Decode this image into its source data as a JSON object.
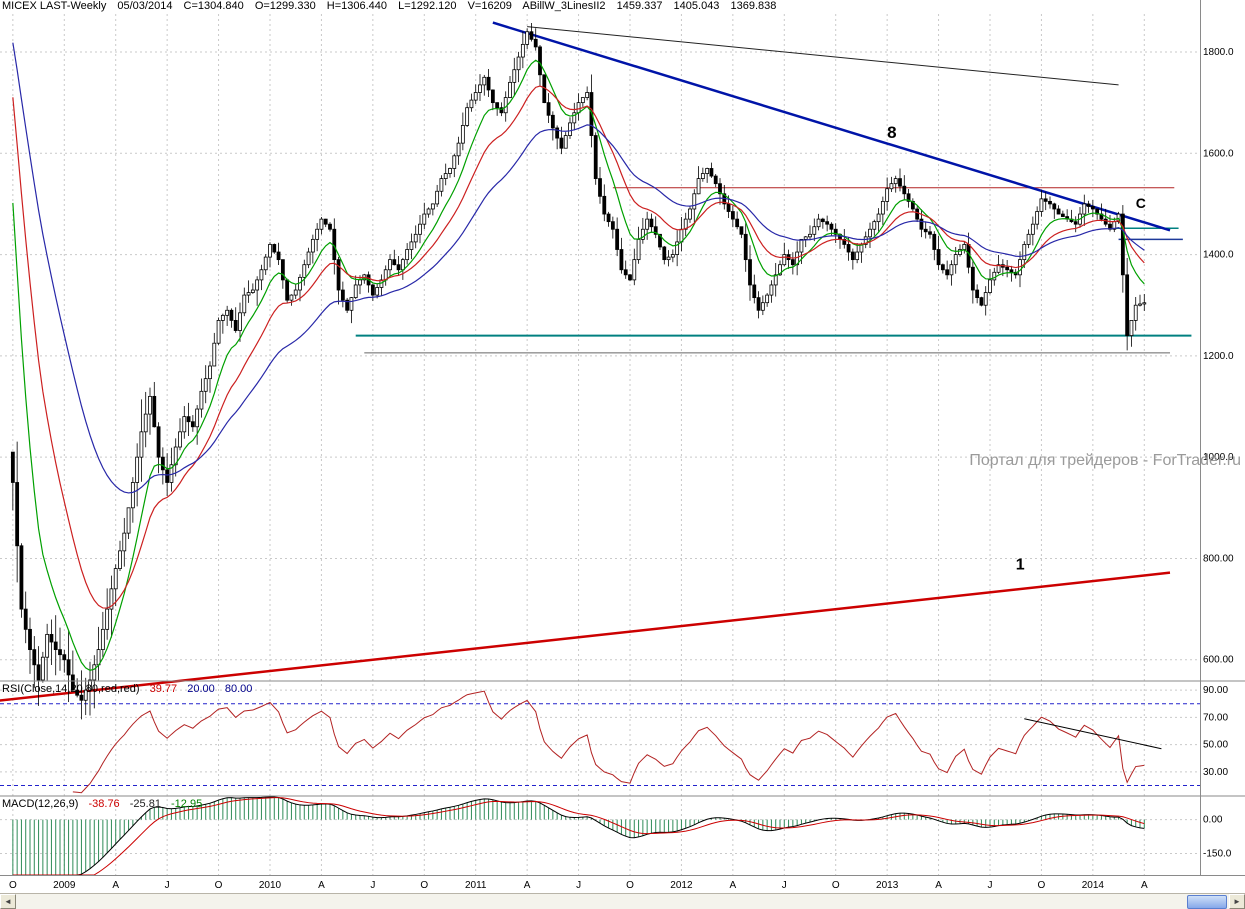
{
  "header": {
    "symbol": "MICEX LAST-Weekly",
    "date": "05/03/2014",
    "close": "C=1304.840",
    "open": "O=1299.330",
    "high": "H=1306.440",
    "low": "L=1292.120",
    "volume": "V=16209",
    "indicator_name": "ABillW_3LinesII2",
    "indicator_values": [
      "1459.337",
      "1405.043",
      "1369.838"
    ]
  },
  "watermark": "Портал для трейдеров - ForTrader.ru",
  "rsi_header": {
    "label": "RSI(Close,14,20,80,red,red)",
    "value": "39.77",
    "level_low": "20.00",
    "level_high": "80.00"
  },
  "macd_header": {
    "label": "MACD(12,26,9)",
    "values": [
      "-38.76",
      "-25.81",
      "-12.95"
    ]
  },
  "scrollbar": {
    "left_arrow": "◄",
    "right_arrow": "►"
  },
  "chart_data": {
    "type": "candlestick",
    "title": "MICEX LAST-Weekly",
    "timeframe": "Weekly, Oct 2008 – Apr 2014",
    "x_ticks": [
      {
        "week": 0,
        "label": "O"
      },
      {
        "week": 12,
        "label": "2009"
      },
      {
        "week": 24,
        "label": "A"
      },
      {
        "week": 36,
        "label": "J"
      },
      {
        "week": 48,
        "label": "O"
      },
      {
        "week": 60,
        "label": "2010"
      },
      {
        "week": 72,
        "label": "A"
      },
      {
        "week": 84,
        "label": "J"
      },
      {
        "week": 96,
        "label": "O"
      },
      {
        "week": 108,
        "label": "2011"
      },
      {
        "week": 120,
        "label": "A"
      },
      {
        "week": 132,
        "label": "J"
      },
      {
        "week": 144,
        "label": "O"
      },
      {
        "week": 156,
        "label": "2012"
      },
      {
        "week": 168,
        "label": "A"
      },
      {
        "week": 180,
        "label": "J"
      },
      {
        "week": 192,
        "label": "O"
      },
      {
        "week": 204,
        "label": "2013"
      },
      {
        "week": 216,
        "label": "A"
      },
      {
        "week": 228,
        "label": "J"
      },
      {
        "week": 240,
        "label": "O"
      },
      {
        "week": 252,
        "label": "2014"
      },
      {
        "week": 264,
        "label": "A"
      }
    ],
    "y_axis": {
      "price": [
        {
          "v": 1800,
          "text": "1800.0"
        },
        {
          "v": 1600,
          "text": "1600.0"
        },
        {
          "v": 1400,
          "text": "1400.0"
        },
        {
          "v": 1200,
          "text": "1200.0"
        },
        {
          "v": 1000,
          "text": "1000.0"
        },
        {
          "v": 800,
          "text": "800.00"
        },
        {
          "v": 600,
          "text": "600.00"
        }
      ],
      "rsi": [
        {
          "v": 90,
          "text": "90.00"
        },
        {
          "v": 70,
          "text": "70.00"
        },
        {
          "v": 50,
          "text": "50.00"
        },
        {
          "v": 30,
          "text": "30.00"
        }
      ],
      "macd": [
        {
          "v": 0,
          "text": "0.00"
        },
        {
          "v": -150,
          "text": "-150.0"
        }
      ]
    },
    "candles": {
      "interval": "2-week sampled closes",
      "closes_biweekly": [
        950,
        700,
        620,
        560,
        650,
        620,
        600,
        540,
        520,
        560,
        620,
        700,
        780,
        850,
        950,
        1050,
        1120,
        1000,
        950,
        1020,
        1080,
        1060,
        1130,
        1180,
        1270,
        1290,
        1250,
        1320,
        1330,
        1370,
        1420,
        1390,
        1310,
        1330,
        1380,
        1430,
        1470,
        1450,
        1330,
        1290,
        1340,
        1360,
        1320,
        1350,
        1390,
        1370,
        1410,
        1440,
        1480,
        1500,
        1550,
        1570,
        1620,
        1690,
        1720,
        1750,
        1700,
        1680,
        1740,
        1790,
        1840,
        1810,
        1700,
        1650,
        1610,
        1660,
        1700,
        1720,
        1550,
        1480,
        1450,
        1370,
        1350,
        1430,
        1470,
        1440,
        1390,
        1400,
        1450,
        1490,
        1550,
        1570,
        1540,
        1500,
        1470,
        1440,
        1340,
        1290,
        1320,
        1360,
        1400,
        1380,
        1430,
        1440,
        1470,
        1460,
        1440,
        1420,
        1390,
        1420,
        1450,
        1480,
        1530,
        1550,
        1520,
        1490,
        1450,
        1440,
        1380,
        1360,
        1400,
        1420,
        1330,
        1300,
        1350,
        1380,
        1370,
        1360,
        1420,
        1460,
        1510,
        1500,
        1480,
        1470,
        1460,
        1500,
        1490,
        1470,
        1450,
        1480,
        1240,
        1300,
        1304.84
      ]
    },
    "moving_averages": [
      {
        "name": "fast-green",
        "period_weeks": 9,
        "seed": 1640,
        "color": "#00a000"
      },
      {
        "name": "medium-red",
        "period_weeks": 18,
        "seed": 1800,
        "color": "#cc2020"
      },
      {
        "name": "slow-blue",
        "period_weeks": 36,
        "seed": 1868,
        "color": "#2828a8"
      }
    ],
    "trendlines": [
      {
        "name": "major-downtrend",
        "label": "8",
        "x1": 112,
        "y1": 1858,
        "x2": 270,
        "y2": 1448,
        "color": "#0014a8",
        "width": 2.5,
        "label_at": [
          204,
          1630
        ],
        "label_size": 17
      },
      {
        "name": "upper-black-line",
        "x1": 120,
        "y1": 1850,
        "x2": 258,
        "y2": 1735,
        "color": "#222222",
        "width": 1
      },
      {
        "name": "long-term-uptrend",
        "label": "1",
        "x1": -8,
        "y1": 515,
        "x2": 270,
        "y2": 772,
        "color": "#cc0000",
        "width": 2.5,
        "label_at": [
          234,
          778
        ],
        "label_size": 16
      }
    ],
    "horizontal_lines": [
      {
        "name": "resistance-red",
        "value": 1532,
        "from": 140,
        "to": 271,
        "color": "#b22222",
        "width": 1
      },
      {
        "name": "support-teal",
        "value": 1240,
        "from": 80,
        "to": 275,
        "color": "#008080",
        "width": 2
      },
      {
        "name": "support-gray",
        "value": 1206,
        "from": 82,
        "to": 270,
        "color": "#666666",
        "width": 1
      },
      {
        "name": "c-level-teal",
        "value": 1452,
        "from": 257,
        "to": 272,
        "color": "#008080",
        "width": 1.5,
        "label": "C",
        "label_at": [
          262,
          1492
        ]
      },
      {
        "name": "short-blue",
        "value": 1430,
        "from": 258,
        "to": 273,
        "color": "#1e3a9a",
        "width": 1.5
      }
    ],
    "rsi": {
      "period": 14,
      "levels": [
        80,
        20
      ],
      "current": 39.77,
      "trendline": {
        "x1": 236,
        "v1": 69,
        "x2": 268,
        "v2": 47
      }
    },
    "macd": {
      "fast": 12,
      "slow": 26,
      "signal": 9,
      "seed_fast": 1280,
      "seed_slow": 1560,
      "current_macd": -38.76,
      "current_signal": -25.81,
      "current_hist": -12.95
    }
  }
}
